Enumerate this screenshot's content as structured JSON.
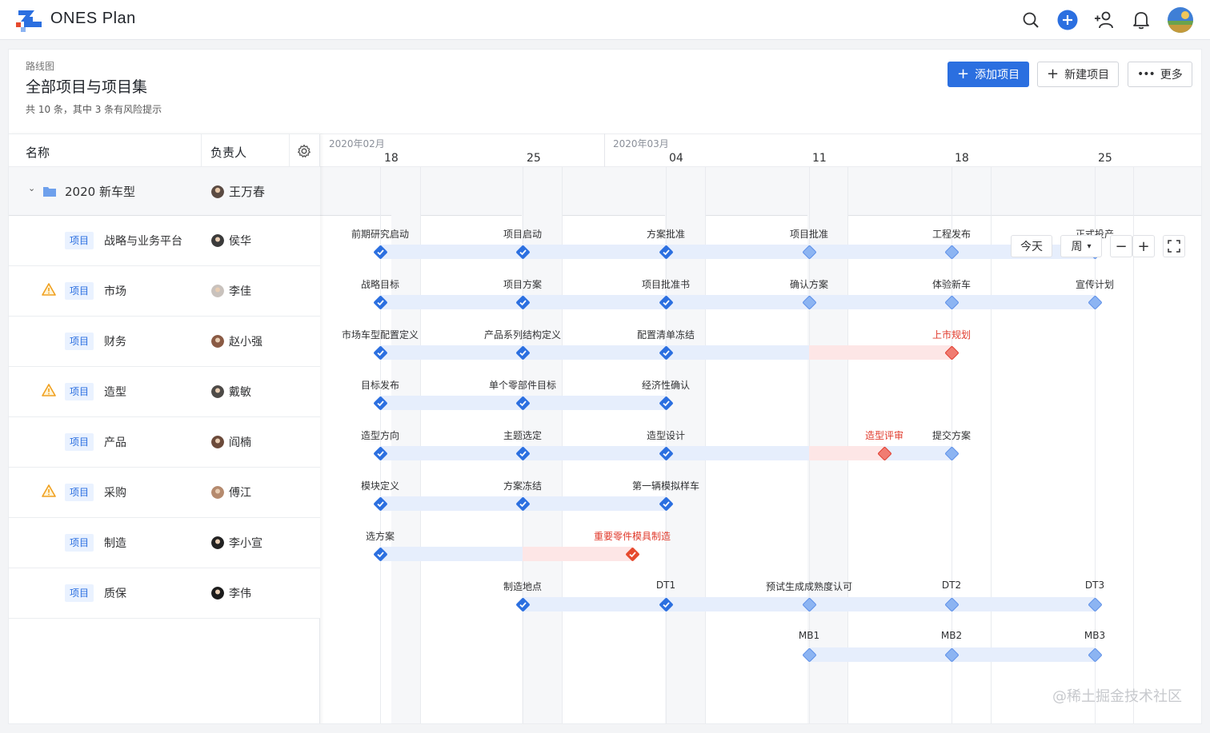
{
  "app": {
    "name": "ONES Plan"
  },
  "colors": {
    "accent": "#2b6fe0",
    "risk": "#e0392b",
    "bar": "#e6eefc"
  },
  "topbar_icons": [
    "search-icon",
    "add-circle-icon",
    "add-member-icon",
    "bell-icon",
    "avatar"
  ],
  "page": {
    "breadcrumb": "路线图",
    "title": "全部项目与项目集",
    "summary": "共 10 条，其中 3 条有风险提示",
    "buttons": {
      "add": "添加项目",
      "new": "新建项目",
      "more": "更多"
    }
  },
  "table": {
    "col_name": "名称",
    "col_owner": "负责人",
    "group": {
      "name": "2020 新车型",
      "owner": "王万春"
    },
    "rows": [
      {
        "tag": "项目",
        "name": "战略与业务平台",
        "owner": "侯华",
        "warn": false
      },
      {
        "tag": "项目",
        "name": "市场",
        "owner": "李佳",
        "warn": true
      },
      {
        "tag": "项目",
        "name": "财务",
        "owner": "赵小强",
        "warn": false
      },
      {
        "tag": "项目",
        "name": "造型",
        "owner": "戴敏",
        "warn": true
      },
      {
        "tag": "项目",
        "name": "产品",
        "owner": "阎楠",
        "warn": false
      },
      {
        "tag": "项目",
        "name": "采购",
        "owner": "傅江",
        "warn": true
      },
      {
        "tag": "项目",
        "name": "制造",
        "owner": "李小宣",
        "warn": false
      },
      {
        "tag": "项目",
        "name": "质保",
        "owner": "李伟",
        "warn": false
      }
    ]
  },
  "timeline": {
    "months": [
      "2020年02月",
      "2020年03月"
    ],
    "days": [
      "18",
      "25",
      "04",
      "11",
      "18",
      "25"
    ],
    "controls": {
      "today": "今天",
      "scale": "周"
    },
    "group_milestones": [
      "前期研究启动",
      "项目启动",
      "方案批准",
      "项目批准",
      "工程发布",
      "正式投产"
    ],
    "row_milestones": [
      [
        "战略目标",
        "项目方案",
        "项目批准书",
        "确认方案",
        "体验新车",
        "宣传计划"
      ],
      [
        "市场车型配置定义",
        "产品系列结构定义",
        "配置清单冻结",
        "上市规划"
      ],
      [
        "目标发布",
        "单个零部件目标",
        "经济性确认"
      ],
      [
        "造型方向",
        "主题选定",
        "造型设计",
        "造型评审",
        "提交方案"
      ],
      [
        "模块定义",
        "方案冻结",
        "第一辆模拟样车"
      ],
      [
        "选方案",
        "重要零件模具制造"
      ],
      [
        "制造地点",
        "DT1",
        "预试生成成熟度认可",
        "DT2",
        "DT3"
      ],
      [
        "MB1",
        "MB2",
        "MB3"
      ]
    ]
  },
  "watermark": "@稀土掘金技术社区"
}
